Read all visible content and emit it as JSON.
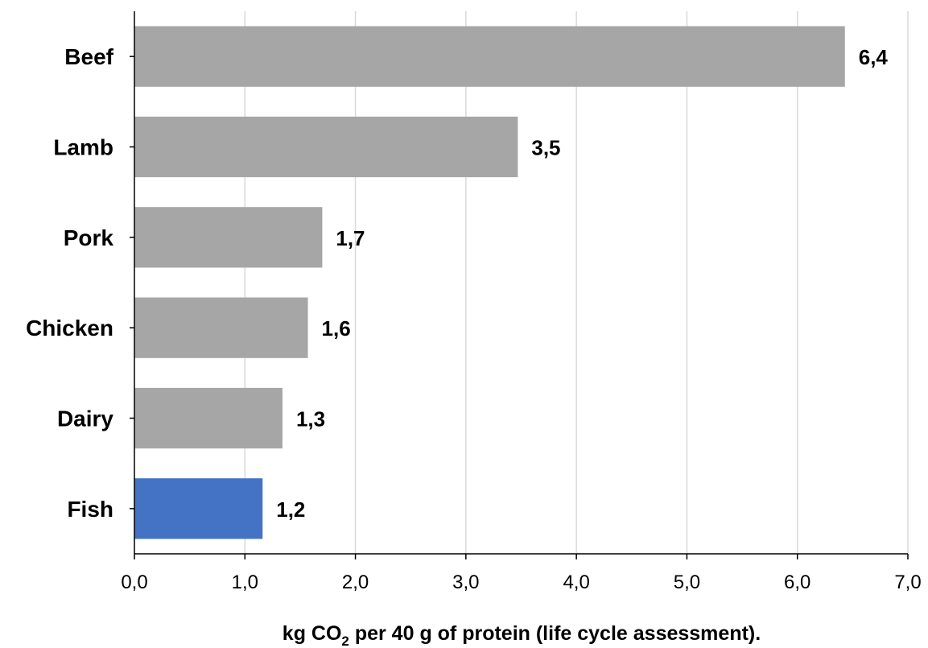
{
  "chart_data": {
    "type": "bar",
    "orientation": "horizontal",
    "categories": [
      "Beef",
      "Lamb",
      "Pork",
      "Chicken",
      "Dairy",
      "Fish"
    ],
    "values": [
      6.43,
      3.47,
      1.7,
      1.57,
      1.34,
      1.16
    ],
    "value_labels": [
      "6,4",
      "3,5",
      "1,7",
      "1,6",
      "1,3",
      "1,2"
    ],
    "bar_colors": [
      "#a6a6a6",
      "#a6a6a6",
      "#a6a6a6",
      "#a6a6a6",
      "#a6a6a6",
      "#4472c4"
    ],
    "xlim": [
      0,
      7
    ],
    "x_ticks": [
      0,
      1,
      2,
      3,
      4,
      5,
      6,
      7
    ],
    "x_tick_labels": [
      "0,0",
      "1,0",
      "2,0",
      "3,0",
      "4,0",
      "5,0",
      "6,0",
      "7,0"
    ],
    "xlabel": {
      "prefix": "kg CO",
      "subscript": "2",
      "suffix": " per 40 g of protein (life cycle assessment)."
    },
    "grid": "vertical",
    "grid_color": "#d9d9d9",
    "axis_color": "#000000"
  }
}
